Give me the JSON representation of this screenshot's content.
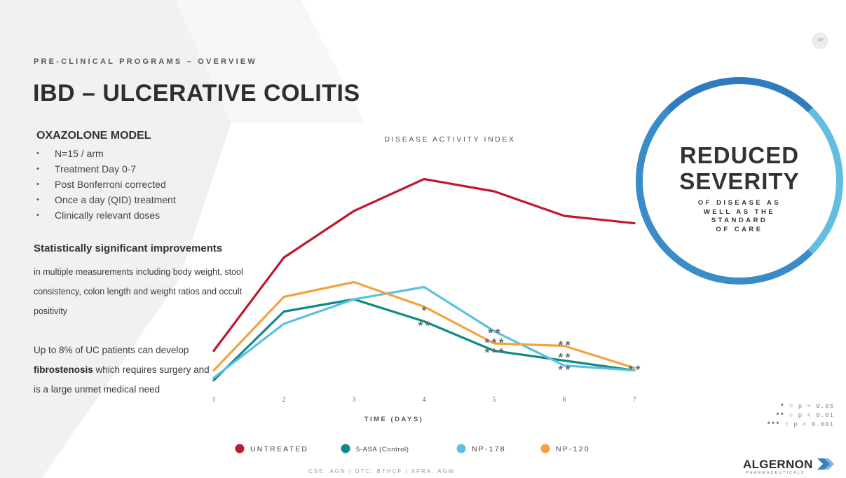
{
  "slide": {
    "page_number": "10",
    "eyebrow": "PRE-CLINICAL PROGRAMS – OVERVIEW",
    "title": "IBD – ULCERATIVE COLITIS",
    "model_heading": "OXAZOLONE MODEL",
    "bullets": [
      "N=15 / arm",
      "Treatment Day 0-7",
      "Post Bonferroni corrected",
      "Once a day (QID) treatment",
      "Clinically relevant doses"
    ],
    "stat_heading": "Statistically significant improvements",
    "stat_body": "in multiple measurements including body weight, stool consistency, colon length and weight ratios and occult positivity",
    "uc_text_1": "Up to 8% of UC patients can develop ",
    "uc_text_bold": "fibrostenosis",
    "uc_text_2": " which requires surgery and is a large unmet medical need",
    "badge_line1": "REDUCED",
    "badge_line2": "SEVERITY",
    "badge_sub": [
      "OF DISEASE AS",
      "WELL AS THE",
      "STANDARD",
      "OF CARE"
    ],
    "sig_legend": [
      {
        "mark": "*",
        "text": "= p < 0.05"
      },
      {
        "mark": "**",
        "text": "= p < 0.01"
      },
      {
        "mark": "***",
        "text": "= p < 0.001"
      }
    ],
    "footer": "CSE: AGN | OTC: BTHCF | XFRA: AGW",
    "logo_name": "ALGERNON",
    "logo_tag": "PHARMACEUTICALS",
    "colors": {
      "badge_ring": "#3a8cc8",
      "logo_chevron": "#3a7fc4"
    }
  },
  "chart_data": {
    "type": "line",
    "title": "DISEASE ACTIVITY INDEX",
    "xlabel": "TIME (DAYS)",
    "ylabel": "",
    "x": [
      1,
      2,
      3,
      4,
      5,
      6,
      7
    ],
    "ylim": [
      0,
      10
    ],
    "grid": false,
    "legend_position": "bottom",
    "series": [
      {
        "name": "UNTREATED",
        "color": "#c0182f",
        "values": [
          1.7,
          5.5,
          7.4,
          8.7,
          8.2,
          7.2,
          6.9
        ]
      },
      {
        "name": "5-ASA (Control)",
        "color": "#0f8a88",
        "values": [
          0.5,
          3.3,
          3.8,
          2.9,
          1.7,
          1.3,
          0.9
        ]
      },
      {
        "name": "NP-178",
        "color": "#5cc0e0",
        "values": [
          0.6,
          2.8,
          3.8,
          4.3,
          2.5,
          1.1,
          0.9
        ]
      },
      {
        "name": "NP-120",
        "color": "#f5a23d",
        "values": [
          0.9,
          3.9,
          4.5,
          3.5,
          2.0,
          1.9,
          1.0
        ]
      }
    ],
    "annotations": [
      {
        "x": 4,
        "y": 3.3,
        "text": "*"
      },
      {
        "x": 4,
        "y": 2.7,
        "text": "**"
      },
      {
        "x": 5,
        "y": 2.4,
        "text": "**"
      },
      {
        "x": 5,
        "y": 2.0,
        "text": "***"
      },
      {
        "x": 5,
        "y": 1.6,
        "text": "***"
      },
      {
        "x": 6,
        "y": 1.9,
        "text": "**"
      },
      {
        "x": 6,
        "y": 1.4,
        "text": "**"
      },
      {
        "x": 6,
        "y": 0.9,
        "text": "**"
      },
      {
        "x": 7,
        "y": 0.9,
        "text": "**"
      }
    ]
  }
}
